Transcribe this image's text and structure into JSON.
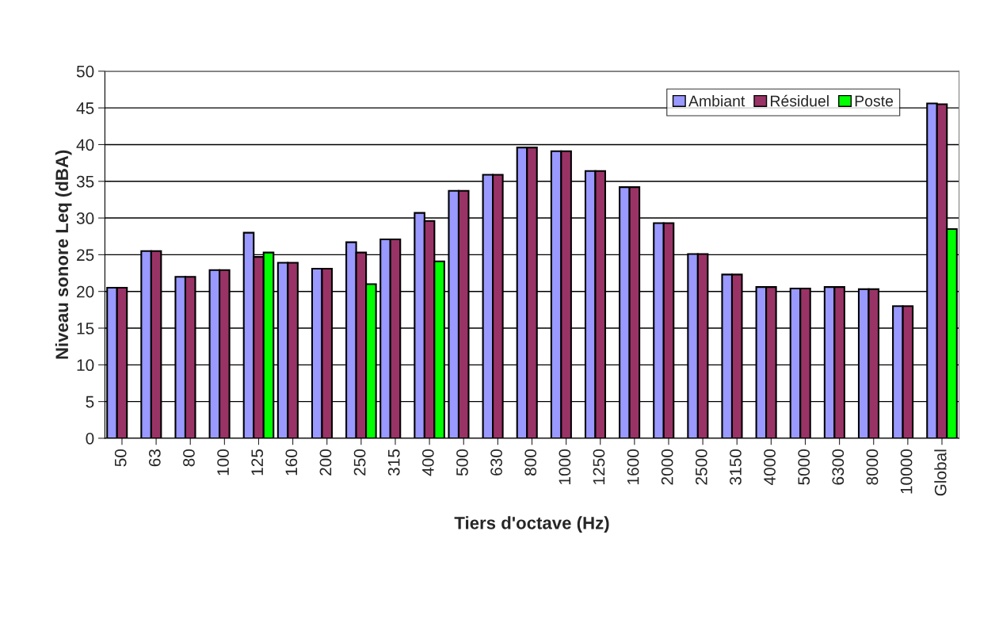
{
  "chart_data": {
    "type": "bar",
    "xlabel": "Tiers d'octave (Hz)",
    "ylabel": "Niveau sonore Leq (dBA)",
    "categories": [
      "50",
      "63",
      "80",
      "100",
      "125",
      "160",
      "200",
      "250",
      "315",
      "400",
      "500",
      "630",
      "800",
      "1000",
      "1250",
      "1600",
      "2000",
      "2500",
      "3150",
      "4000",
      "5000",
      "6300",
      "8000",
      "10000",
      "Global"
    ],
    "series": [
      {
        "name": "Ambiant",
        "color": "#9999ff",
        "values": [
          20.5,
          25.5,
          22.0,
          22.9,
          28.0,
          23.9,
          23.1,
          26.7,
          27.1,
          30.7,
          33.7,
          35.9,
          39.6,
          39.1,
          36.4,
          34.2,
          29.3,
          25.1,
          22.3,
          20.6,
          20.4,
          20.6,
          20.3,
          18.0,
          45.6
        ]
      },
      {
        "name": "Résiduel",
        "color": "#993366",
        "values": [
          20.5,
          25.5,
          22.0,
          22.9,
          24.7,
          23.9,
          23.1,
          25.3,
          27.1,
          29.6,
          33.7,
          35.9,
          39.6,
          39.1,
          36.4,
          34.2,
          29.3,
          25.1,
          22.3,
          20.6,
          20.4,
          20.6,
          20.3,
          18.0,
          45.5
        ]
      },
      {
        "name": "Poste",
        "color": "#00ff00",
        "values": [
          null,
          null,
          null,
          null,
          25.3,
          null,
          null,
          21.0,
          null,
          24.1,
          null,
          null,
          null,
          null,
          null,
          null,
          null,
          null,
          null,
          null,
          null,
          null,
          null,
          null,
          28.5
        ]
      }
    ],
    "ylim": [
      0,
      50
    ],
    "yticks": [
      0,
      5,
      10,
      15,
      20,
      25,
      30,
      35,
      40,
      45,
      50
    ],
    "grid": "y",
    "legend": "top right"
  }
}
